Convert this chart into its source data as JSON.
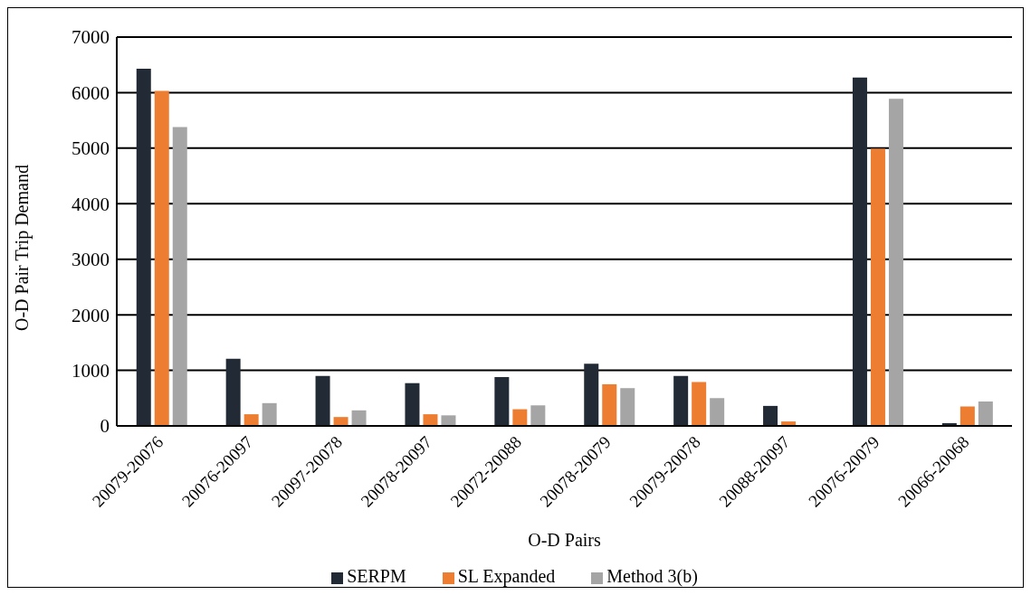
{
  "chart_data": {
    "type": "bar",
    "xlabel": "O-D Pairs",
    "ylabel": "O-D Pair Trip Demand",
    "categories": [
      "20079-20076",
      "20076-20097",
      "20097-20078",
      "20078-20097",
      "20072-20088",
      "20078-20079",
      "20079-20078",
      "20088-20097",
      "20076-20079",
      "20066-20068"
    ],
    "series": [
      {
        "name": "SERPM",
        "color": "#222a35",
        "values": [
          6430,
          1210,
          900,
          770,
          880,
          1120,
          900,
          360,
          6270,
          50
        ]
      },
      {
        "name": "SL Expanded",
        "color": "#ed7d31",
        "values": [
          6030,
          210,
          160,
          210,
          300,
          750,
          790,
          80,
          4990,
          350
        ]
      },
      {
        "name": "Method 3(b)",
        "color": "#a5a5a5",
        "values": [
          5380,
          410,
          280,
          190,
          370,
          680,
          500,
          0,
          5890,
          440
        ]
      }
    ],
    "ylim": [
      0,
      7000
    ],
    "yticks": [
      0,
      1000,
      2000,
      3000,
      4000,
      5000,
      6000,
      7000
    ],
    "grid": "y",
    "legend": "bottom"
  }
}
